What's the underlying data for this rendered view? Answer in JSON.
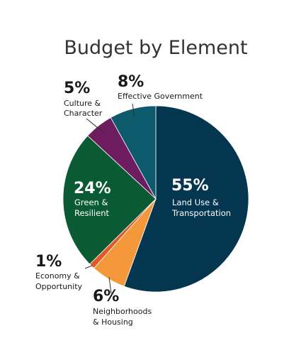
{
  "chart_data": {
    "type": "pie",
    "title": "Budget by Element",
    "slices": [
      {
        "label_lines": [
          "Land Use &",
          "Transportation"
        ],
        "value": 55,
        "value_label": "55%",
        "color": "#053650"
      },
      {
        "label_lines": [
          "Neighborhoods",
          "& Housing"
        ],
        "value": 6,
        "value_label": "6%",
        "color": "#f3973b"
      },
      {
        "label_lines": [
          "Economy &",
          "Opportunity"
        ],
        "value": 1,
        "value_label": "1%",
        "color": "#e25a29"
      },
      {
        "label_lines": [
          "Green &",
          "Resilient"
        ],
        "value": 24,
        "value_label": "24%",
        "color": "#0a5a33"
      },
      {
        "label_lines": [
          "Culture &",
          "Character"
        ],
        "value": 5,
        "value_label": "5%",
        "color": "#6e1c60"
      },
      {
        "label_lines": [
          "Effective Government"
        ],
        "value": 8,
        "value_label": "8%",
        "color": "#0c5a6c"
      }
    ],
    "start_angle_deg": 0,
    "direction": "clockwise",
    "legend": "none",
    "text_color_dark": "#1a1a1a",
    "text_color_light": "#ffffff",
    "leader_color": "#333333"
  }
}
